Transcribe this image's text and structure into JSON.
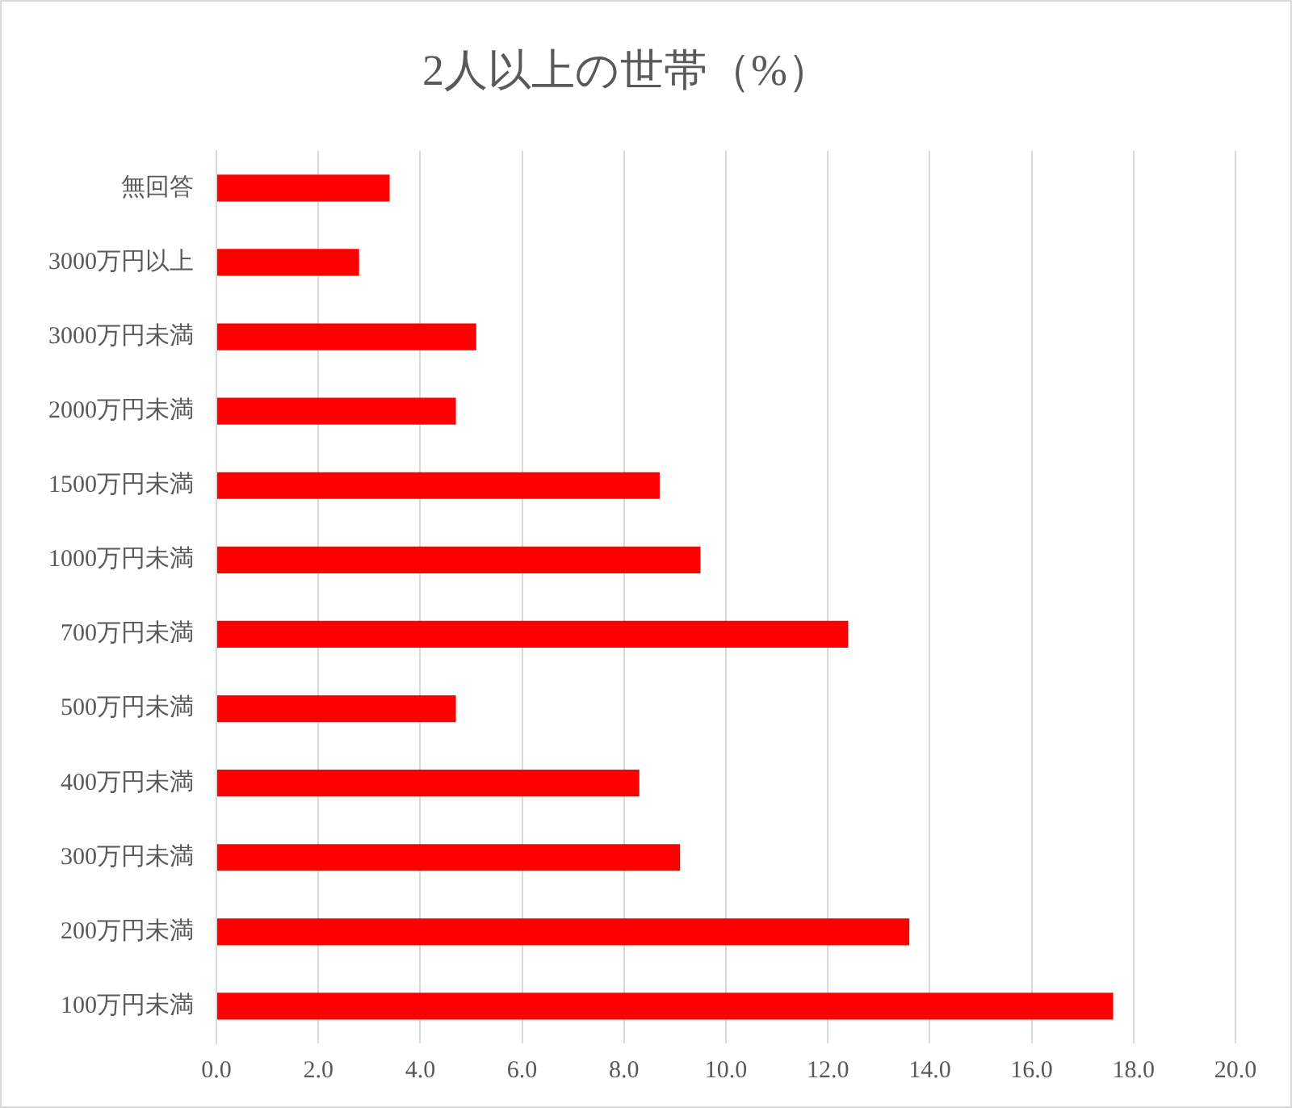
{
  "chart_data": {
    "type": "bar",
    "title": "2人以上の世帯（%）",
    "orientation": "horizontal",
    "categories": [
      "無回答",
      "3000万円以上",
      "3000万円未満",
      "2000万円未満",
      "1500万円未満",
      "1000万円未満",
      "700万円未満",
      "500万円未満",
      "400万円未満",
      "300万円未満",
      "200万円未満",
      "100万円未満"
    ],
    "values": [
      3.4,
      2.8,
      5.1,
      4.7,
      8.7,
      9.5,
      12.4,
      4.7,
      8.3,
      9.1,
      13.6,
      17.6
    ],
    "color": "#ff0000",
    "xlim": [
      0,
      20
    ],
    "xticks": [
      {
        "value": 0,
        "label": "0.0"
      },
      {
        "value": 2,
        "label": "2.0"
      },
      {
        "value": 4,
        "label": "4.0"
      },
      {
        "value": 6,
        "label": "6.0"
      },
      {
        "value": 8,
        "label": "8.0"
      },
      {
        "value": 10,
        "label": "10.0"
      },
      {
        "value": 12,
        "label": "12.0"
      },
      {
        "value": 14,
        "label": "14.0"
      },
      {
        "value": 16,
        "label": "16.0"
      },
      {
        "value": 18,
        "label": "18.0"
      },
      {
        "value": 20,
        "label": "20.0"
      }
    ],
    "grid": "x"
  }
}
